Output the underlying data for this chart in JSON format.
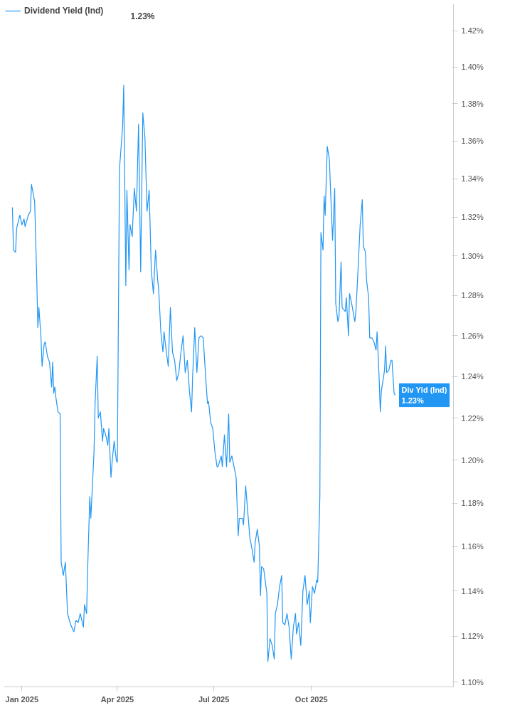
{
  "chart_data": {
    "type": "line",
    "log": "y",
    "grid": false,
    "legend": "top left",
    "marker": "none",
    "line_style": "solid",
    "xlim": [
      "2024-12-15",
      "2026-02-12"
    ],
    "xticks": [
      {
        "value": "2025-01-01",
        "label": "Jan 2025"
      },
      {
        "value": "2025-04-01",
        "label": "Apr 2025"
      },
      {
        "value": "2025-07-01",
        "label": "Jul 2025"
      },
      {
        "value": "2025-10-01",
        "label": "Oct 2025"
      }
    ],
    "ylim": [
      1.098,
      1.435
    ],
    "yticks": [
      {
        "value": 1.1,
        "label": "1.10%"
      },
      {
        "value": 1.12,
        "label": "1.12%"
      },
      {
        "value": 1.14,
        "label": "1.14%"
      },
      {
        "value": 1.16,
        "label": "1.16%"
      },
      {
        "value": 1.18,
        "label": "1.18%"
      },
      {
        "value": 1.2,
        "label": "1.20%"
      },
      {
        "value": 1.22,
        "label": "1.22%"
      },
      {
        "value": 1.24,
        "label": "1.24%"
      },
      {
        "value": 1.26,
        "label": "1.26%"
      },
      {
        "value": 1.28,
        "label": "1.28%"
      },
      {
        "value": 1.3,
        "label": "1.30%"
      },
      {
        "value": 1.32,
        "label": "1.32%"
      },
      {
        "value": 1.34,
        "label": "1.34%"
      },
      {
        "value": 1.36,
        "label": "1.36%"
      },
      {
        "value": 1.38,
        "label": "1.38%"
      },
      {
        "value": 1.4,
        "label": "1.40%"
      },
      {
        "value": 1.42,
        "label": "1.42%"
      }
    ],
    "annotations": [
      {
        "text": "Div Yld (Ind)\n1.23%",
        "x": "2025-12-19",
        "y": 1.231
      },
      "1.23%"
    ],
    "series": [
      {
        "name": "Dividend Yield (Ind)",
        "color": "#2196f3",
        "x": [
          "2024-12-23",
          "2024-12-24",
          "2024-12-26",
          "2024-12-27",
          "2024-12-30",
          "2025-01-01",
          "2025-01-03",
          "2025-01-04",
          "2025-01-07",
          "2025-01-09",
          "2025-01-10",
          "2025-01-13",
          "2025-01-15",
          "2025-01-16",
          "2025-01-17",
          "2025-01-19",
          "2025-01-20",
          "2025-01-22",
          "2025-01-23",
          "2025-01-25",
          "2025-01-27",
          "2025-01-29",
          "2025-01-30",
          "2025-01-31",
          "2025-02-01",
          "2025-02-02",
          "2025-02-04",
          "2025-02-06",
          "2025-02-07",
          "2025-02-09",
          "2025-02-11",
          "2025-02-13",
          "2025-02-16",
          "2025-02-19",
          "2025-02-21",
          "2025-02-23",
          "2025-02-25",
          "2025-02-26",
          "2025-02-28",
          "2025-03-01",
          "2025-03-03",
          "2025-03-04",
          "2025-03-06",
          "2025-03-07",
          "2025-03-10",
          "2025-03-11",
          "2025-03-13",
          "2025-03-14",
          "2025-03-16",
          "2025-03-18",
          "2025-03-19",
          "2025-03-21",
          "2025-03-23",
          "2025-03-24",
          "2025-03-26",
          "2025-03-27",
          "2025-03-29",
          "2025-03-31",
          "2025-04-01",
          "2025-04-03",
          "2025-04-06",
          "2025-04-07",
          "2025-04-09",
          "2025-04-10",
          "2025-04-12",
          "2025-04-13",
          "2025-04-15",
          "2025-04-17",
          "2025-04-19",
          "2025-04-21",
          "2025-04-23",
          "2025-04-25",
          "2025-04-27",
          "2025-04-29",
          "2025-05-01",
          "2025-05-03",
          "2025-05-05",
          "2025-05-07",
          "2025-05-09",
          "2025-05-10",
          "2025-05-12",
          "2025-05-14",
          "2025-05-15",
          "2025-05-17",
          "2025-05-19",
          "2025-05-21",
          "2025-05-23",
          "2025-05-25",
          "2025-05-27",
          "2025-05-29",
          "2025-05-31",
          "2025-06-02",
          "2025-06-04",
          "2025-06-06",
          "2025-06-08",
          "2025-06-10",
          "2025-06-11",
          "2025-06-13",
          "2025-06-15",
          "2025-06-17",
          "2025-06-19",
          "2025-06-21",
          "2025-06-23",
          "2025-06-25",
          "2025-06-26",
          "2025-06-28",
          "2025-06-30",
          "2025-07-02",
          "2025-07-04",
          "2025-07-05",
          "2025-07-08",
          "2025-07-09",
          "2025-07-11",
          "2025-07-13",
          "2025-07-15",
          "2025-07-16",
          "2025-07-18",
          "2025-07-20",
          "2025-07-22",
          "2025-07-24",
          "2025-07-25",
          "2025-07-28",
          "2025-07-29",
          "2025-07-31",
          "2025-08-02",
          "2025-08-04",
          "2025-08-06",
          "2025-08-08",
          "2025-08-09",
          "2025-08-11",
          "2025-08-13",
          "2025-08-14",
          "2025-08-15",
          "2025-08-17",
          "2025-08-20",
          "2025-08-21",
          "2025-08-23",
          "2025-08-25",
          "2025-08-27",
          "2025-08-28",
          "2025-08-30",
          "2025-09-01",
          "2025-09-03",
          "2025-09-04",
          "2025-09-06",
          "2025-09-08",
          "2025-09-10",
          "2025-09-12",
          "2025-09-14",
          "2025-09-16",
          "2025-09-17",
          "2025-09-19",
          "2025-09-21",
          "2025-09-23",
          "2025-09-25",
          "2025-09-27",
          "2025-09-29",
          "2025-09-30",
          "2025-10-02",
          "2025-10-04",
          "2025-10-06",
          "2025-10-07",
          "2025-10-09",
          "2025-10-10",
          "2025-10-12",
          "2025-10-13",
          "2025-10-14",
          "2025-10-16",
          "2025-10-18",
          "2025-10-19",
          "2025-10-21",
          "2025-10-23",
          "2025-10-24",
          "2025-10-26",
          "2025-10-27",
          "2025-10-29",
          "2025-10-30",
          "2025-11-02",
          "2025-11-03",
          "2025-11-05",
          "2025-11-06",
          "2025-11-08",
          "2025-11-11",
          "2025-11-12",
          "2025-11-14",
          "2025-11-16",
          "2025-11-18",
          "2025-11-19",
          "2025-11-21",
          "2025-11-22",
          "2025-11-24",
          "2025-11-25",
          "2025-11-27",
          "2025-11-29",
          "2025-12-01",
          "2025-12-02",
          "2025-12-04",
          "2025-12-05",
          "2025-12-06",
          "2025-12-09",
          "2025-12-10",
          "2025-12-11",
          "2025-12-13",
          "2025-12-15",
          "2025-12-16",
          "2025-12-18",
          "2025-12-19"
        ],
        "values": [
          1.325,
          1.303,
          1.302,
          1.314,
          1.321,
          1.316,
          1.319,
          1.315,
          1.321,
          1.323,
          1.337,
          1.328,
          1.288,
          1.264,
          1.274,
          1.259,
          1.245,
          1.256,
          1.257,
          1.25,
          1.247,
          1.235,
          1.247,
          1.232,
          1.235,
          1.23,
          1.223,
          1.222,
          1.153,
          1.147,
          1.153,
          1.13,
          1.125,
          1.122,
          1.127,
          1.126,
          1.13,
          1.128,
          1.124,
          1.134,
          1.13,
          1.15,
          1.183,
          1.173,
          1.204,
          1.227,
          1.25,
          1.22,
          1.223,
          1.209,
          1.215,
          1.212,
          1.207,
          1.215,
          1.192,
          1.199,
          1.209,
          1.2,
          1.199,
          1.345,
          1.368,
          1.39,
          1.285,
          1.334,
          1.293,
          1.316,
          1.31,
          1.335,
          1.323,
          1.369,
          1.292,
          1.375,
          1.362,
          1.323,
          1.334,
          1.293,
          1.281,
          1.303,
          1.288,
          1.283,
          1.262,
          1.252,
          1.262,
          1.253,
          1.245,
          1.274,
          1.252,
          1.248,
          1.238,
          1.242,
          1.252,
          1.26,
          1.242,
          1.248,
          1.233,
          1.223,
          1.24,
          1.264,
          1.242,
          1.259,
          1.26,
          1.259,
          1.242,
          1.227,
          1.228,
          1.218,
          1.215,
          1.204,
          1.197,
          1.197,
          1.202,
          1.197,
          1.212,
          1.197,
          1.222,
          1.199,
          1.202,
          1.197,
          1.192,
          1.165,
          1.173,
          1.173,
          1.17,
          1.188,
          1.176,
          1.164,
          1.159,
          1.153,
          1.162,
          1.168,
          1.16,
          1.138,
          1.151,
          1.15,
          1.139,
          1.109,
          1.119,
          1.116,
          1.11,
          1.13,
          1.134,
          1.142,
          1.147,
          1.126,
          1.125,
          1.13,
          1.124,
          1.11,
          1.124,
          1.13,
          1.121,
          1.126,
          1.116,
          1.14,
          1.147,
          1.134,
          1.14,
          1.126,
          1.142,
          1.139,
          1.145,
          1.144,
          1.183,
          1.312,
          1.303,
          1.331,
          1.321,
          1.357,
          1.35,
          1.335,
          1.308,
          1.335,
          1.276,
          1.267,
          1.269,
          1.297,
          1.274,
          1.272,
          1.279,
          1.26,
          1.281,
          1.276,
          1.267,
          1.272,
          1.293,
          1.316,
          1.329,
          1.305,
          1.302,
          1.288,
          1.279,
          1.259,
          1.259,
          1.257,
          1.253,
          1.262,
          1.238,
          1.223,
          1.233,
          1.243,
          1.255,
          1.242,
          1.243,
          1.248,
          1.248,
          1.232,
          1.231
        ]
      }
    ]
  }
}
